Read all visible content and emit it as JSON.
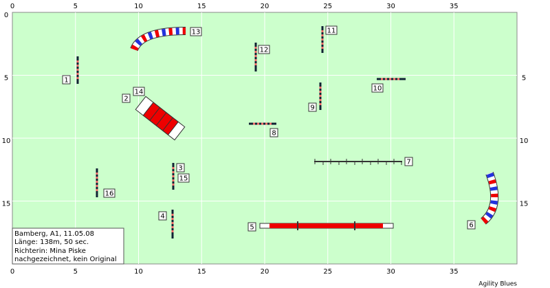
{
  "axes": {
    "top": [
      0,
      5,
      10,
      15,
      20,
      25,
      30,
      35
    ],
    "bottom": [
      0,
      5,
      10,
      15,
      20,
      25,
      30,
      35
    ],
    "left": [
      0,
      5,
      10,
      15
    ],
    "right": [
      5,
      10,
      15
    ]
  },
  "obstacles": [
    "1",
    "2",
    "3",
    "4",
    "5",
    "6",
    "7",
    "8",
    "9",
    "10",
    "11",
    "12",
    "13",
    "14",
    "15",
    "16"
  ],
  "info": [
    "Bamberg, A1, 11.05.08",
    "Länge: 138m, 50 sec.",
    "Richterin: Mina Piske",
    "nachgezeichnet, kein Original"
  ],
  "footer": "Agility Blues"
}
